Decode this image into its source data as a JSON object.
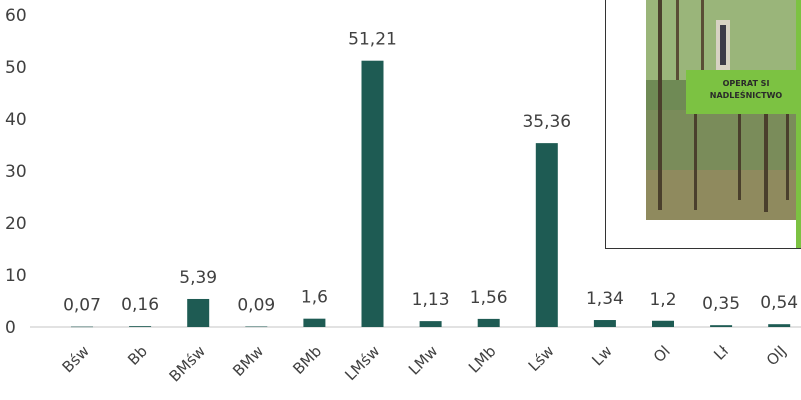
{
  "chart_data": {
    "type": "bar",
    "title": "",
    "xlabel": "",
    "ylabel": "",
    "ylim": [
      0,
      60
    ],
    "yticks": [
      0,
      10,
      20,
      30,
      40,
      50,
      60
    ],
    "grid": false,
    "legend": "none",
    "bar_color": "#1e5b53",
    "categories": [
      "Bśw",
      "Bb",
      "BMśw",
      "BMw",
      "BMb",
      "LMśw",
      "LMw",
      "LMb",
      "Lśw",
      "Lw",
      "Ol",
      "Lł",
      "OlJ"
    ],
    "value_labels": [
      "0,07",
      "0,16",
      "5,39",
      "0,09",
      "1,6",
      "51,21",
      "1,13",
      "1,56",
      "35,36",
      "1,34",
      "1,2",
      "0,35",
      "0,54"
    ],
    "values": [
      0.07,
      0.16,
      5.39,
      0.09,
      1.6,
      51.21,
      1.13,
      1.56,
      35.36,
      1.34,
      1.2,
      0.35,
      0.54
    ]
  },
  "inset": {
    "title_line1": "OPERAT SI",
    "title_line2": "NADLEŚNICTWO"
  }
}
